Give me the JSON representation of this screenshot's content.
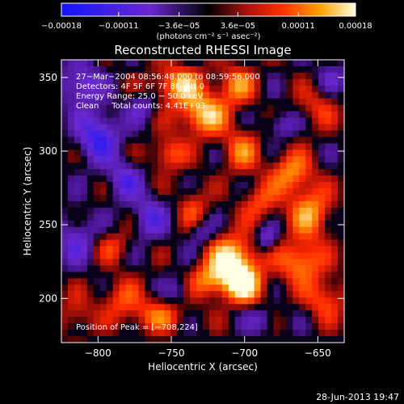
{
  "chart_data": {
    "type": "heatmap",
    "title": "Reconstructed RHESSI Image",
    "xlabel": "Heliocentric X (arcsec)",
    "ylabel": "Heliocentric Y (arcsec)",
    "xlim": [
      -825,
      -632
    ],
    "ylim": [
      170,
      362
    ],
    "xticks": [
      -800,
      -750,
      -700,
      -650
    ],
    "xtick_labels": [
      "−800",
      "−750",
      "−700",
      "−650"
    ],
    "yticks": [
      200,
      250,
      300,
      350
    ],
    "ytick_labels": [
      "200",
      "250",
      "300",
      "350"
    ],
    "colorbar": {
      "range": [
        -0.00018,
        0.00018
      ],
      "ticks": [
        -0.00018,
        -0.00011,
        -3.6e-05,
        3.6e-05,
        0.00011,
        0.00018
      ],
      "tick_labels": [
        "−0.00018",
        "−0.00011",
        "−3.6e−05",
        "3.6e−05",
        "0.00011",
        "0.00018"
      ],
      "units_label": "(photons cm⁻² s⁻¹ asec⁻²)",
      "colormap": "blue-purple-red-orange-yellow-white"
    },
    "info_lines": [
      "27−Mar−2004 08:56:48.000 to 08:59:56.000",
      "Detectors: 4F 5F 6F 7F 8F, Att 0",
      "Energy Range: 25.0 − 50.0 keV",
      "Clean     Total counts: 4.41E+03"
    ],
    "peak_label": "Position of Peak = [−708,224]",
    "peak": {
      "x": -708,
      "y": 224
    },
    "grid": false,
    "blobs": [
      {
        "x": -708,
        "y": 224,
        "sx": 11,
        "sy": 12,
        "amp": 1.15
      },
      {
        "x": -700,
        "y": 208,
        "sx": 10,
        "sy": 8,
        "amp": 0.75
      },
      {
        "x": -725,
        "y": 212,
        "sx": 8,
        "sy": 8,
        "amp": 0.55
      },
      {
        "x": -728,
        "y": 325,
        "sx": 12,
        "sy": 10,
        "amp": 0.85
      },
      {
        "x": -745,
        "y": 345,
        "sx": 12,
        "sy": 9,
        "amp": 0.75
      },
      {
        "x": -752,
        "y": 298,
        "sx": 8,
        "sy": 8,
        "amp": 0.55
      },
      {
        "x": -705,
        "y": 345,
        "sx": 9,
        "sy": 9,
        "amp": 0.6
      },
      {
        "x": -702,
        "y": 300,
        "sx": 9,
        "sy": 10,
        "amp": 0.55
      },
      {
        "x": -668,
        "y": 285,
        "sx": 10,
        "sy": 10,
        "amp": 0.65
      },
      {
        "x": -655,
        "y": 258,
        "sx": 10,
        "sy": 12,
        "amp": 0.7
      },
      {
        "x": -662,
        "y": 225,
        "sx": 11,
        "sy": 10,
        "amp": 0.7
      },
      {
        "x": -645,
        "y": 200,
        "sx": 10,
        "sy": 10,
        "amp": 0.5
      },
      {
        "x": -690,
        "y": 265,
        "sx": 9,
        "sy": 9,
        "amp": 0.45
      },
      {
        "x": -735,
        "y": 262,
        "sx": 7,
        "sy": 10,
        "amp": 0.4
      },
      {
        "x": -790,
        "y": 235,
        "sx": 9,
        "sy": 8,
        "amp": 0.35
      },
      {
        "x": -785,
        "y": 200,
        "sx": 10,
        "sy": 10,
        "amp": 0.4
      },
      {
        "x": -760,
        "y": 188,
        "sx": 14,
        "sy": 8,
        "amp": 0.5
      },
      {
        "x": -815,
        "y": 188,
        "sx": 8,
        "sy": 10,
        "amp": 0.35
      },
      {
        "x": -650,
        "y": 330,
        "sx": 10,
        "sy": 10,
        "amp": 0.35
      },
      {
        "x": -800,
        "y": 310,
        "sx": 10,
        "sy": 12,
        "amp": -0.75
      },
      {
        "x": -782,
        "y": 280,
        "sx": 8,
        "sy": 9,
        "amp": -0.55
      },
      {
        "x": -812,
        "y": 345,
        "sx": 10,
        "sy": 10,
        "amp": -0.6
      },
      {
        "x": -765,
        "y": 255,
        "sx": 8,
        "sy": 10,
        "amp": -0.55
      },
      {
        "x": -815,
        "y": 240,
        "sx": 10,
        "sy": 12,
        "amp": -0.45
      },
      {
        "x": -685,
        "y": 240,
        "sx": 5,
        "sy": 6,
        "amp": -0.5
      },
      {
        "x": -730,
        "y": 245,
        "sx": 6,
        "sy": 6,
        "amp": -0.35
      },
      {
        "x": -745,
        "y": 205,
        "sx": 5,
        "sy": 7,
        "amp": -0.3
      },
      {
        "x": -675,
        "y": 318,
        "sx": 7,
        "sy": 6,
        "amp": -0.4
      },
      {
        "x": -688,
        "y": 185,
        "sx": 7,
        "sy": 6,
        "amp": -0.35
      },
      {
        "x": -640,
        "y": 350,
        "sx": 8,
        "sy": 8,
        "amp": -0.3
      },
      {
        "x": -770,
        "y": 330,
        "sx": 7,
        "sy": 7,
        "amp": -0.35
      }
    ]
  },
  "footer": {
    "timestamp": "28-Jun-2013 19:47"
  }
}
